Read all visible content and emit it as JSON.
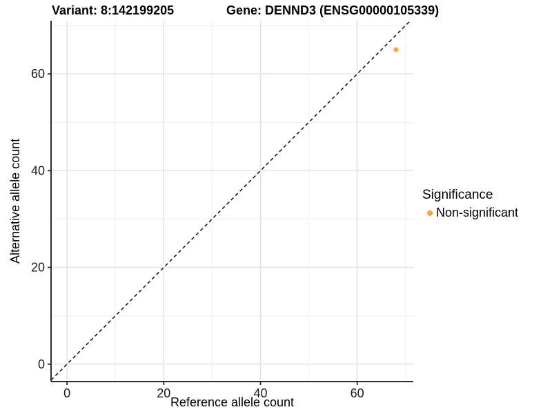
{
  "header": {
    "variant_title": "Variant: 8:142199205",
    "gene_title": "Gene: DENND3 (ENSG00000105339)"
  },
  "chart_data": {
    "type": "scatter",
    "xlabel": "Reference allele count",
    "ylabel": "Alternative allele count",
    "x_ticks": [
      0,
      20,
      40,
      60
    ],
    "y_ticks": [
      0,
      20,
      40,
      60
    ],
    "x_minor_ticks": [
      10,
      30,
      50,
      70
    ],
    "y_minor_ticks": [
      10,
      30,
      50,
      70
    ],
    "x_range": [
      -3.3,
      71.6
    ],
    "y_range": [
      -3.6,
      71.0
    ],
    "points": [
      {
        "x": 68,
        "y": 65,
        "series": "Non-significant"
      }
    ],
    "reference_line": {
      "equation": "y = x",
      "style": "dashed",
      "color": "#1a1a1a"
    },
    "grid": "on",
    "legend_position": "right",
    "point_radius": 3.5,
    "colors": {
      "non_significant": "#FAA43A",
      "grid_major": "#E4E4E4",
      "grid_minor": "#F1F1F1",
      "axis": "#2b2b2b",
      "tick_text": "#1a1a1a"
    }
  },
  "legend": {
    "title": "Significance",
    "items": [
      {
        "label": "Non-significant",
        "color": "#FAA43A"
      }
    ]
  }
}
